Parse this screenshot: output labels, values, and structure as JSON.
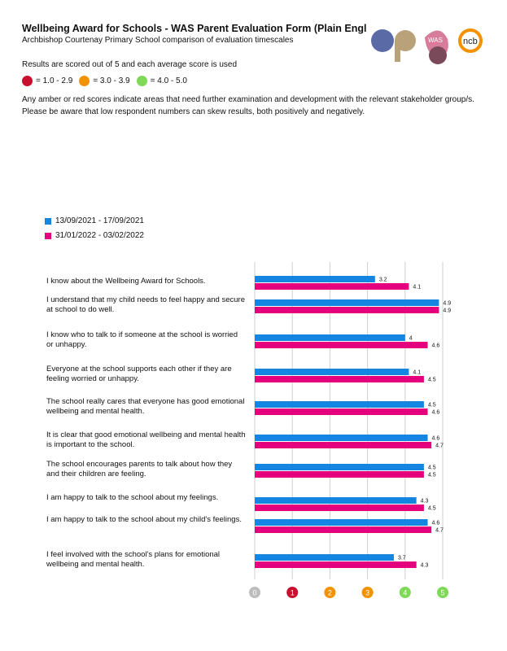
{
  "header": {
    "title": "Wellbeing Award for Schools - WAS Parent Evaluation Form (Plain English version)",
    "subtitle": "Archbishop Courtenay Primary School  comparison of evaluation timescales",
    "logos": [
      "ap",
      "WAS",
      "ncb"
    ]
  },
  "scoring": {
    "text": "Results are scored out of 5 and each average score is used",
    "key": [
      {
        "label": "= 1.0 - 2.9",
        "color": "#c8102e"
      },
      {
        "label": "= 3.0 - 3.9",
        "color": "#f39200"
      },
      {
        "label": "= 4.0 - 5.0",
        "color": "#7ed957"
      }
    ]
  },
  "notes": [
    "Any amber or red scores indicate areas that need further examination and development with the relevant stakeholder group/s.",
    "Please be aware that low respondent numbers can skew results, both positively and negatively."
  ],
  "chart_data": {
    "type": "bar",
    "orientation": "horizontal",
    "xlim": [
      0,
      5
    ],
    "grid": true,
    "legend_placement": "top-left",
    "x_ticks": [
      {
        "label": "0",
        "color": "#bdbdbd"
      },
      {
        "label": "1",
        "color": "#c8102e"
      },
      {
        "label": "2",
        "color": "#f39200"
      },
      {
        "label": "3",
        "color": "#f39200"
      },
      {
        "label": "4",
        "color": "#7ed957"
      },
      {
        "label": "5",
        "color": "#7ed957"
      }
    ],
    "categories": [
      "I know about the Wellbeing Award for Schools.",
      "I understand that my child needs to feel happy and secure at school to do well.",
      "I know who to talk to if someone at the school is worried or unhappy.",
      "Everyone at the school supports each other if they are feeling worried or unhappy.",
      "The school really cares that everyone has good emotional wellbeing and mental health.",
      "It is clear that good emotional wellbeing and mental health is important to the school.",
      "The school encourages parents to talk about how they and their children are feeling.",
      "I am happy to talk to the school about my feelings.",
      "I am happy to talk to the school about my child's feelings.",
      "I feel involved with the school's plans for emotional wellbeing and mental health."
    ],
    "series": [
      {
        "name": "13/09/2021 - 17/09/2021",
        "color": "#1485e0",
        "values": [
          3.2,
          4.9,
          4,
          4.1,
          4.5,
          4.6,
          4.5,
          4.3,
          4.6,
          3.7
        ]
      },
      {
        "name": "31/01/2022 - 03/02/2022",
        "color": "#e5007e",
        "values": [
          4.1,
          4.9,
          4.6,
          4.5,
          4.6,
          4.7,
          4.5,
          4.5,
          4.7,
          4.3
        ]
      }
    ]
  }
}
